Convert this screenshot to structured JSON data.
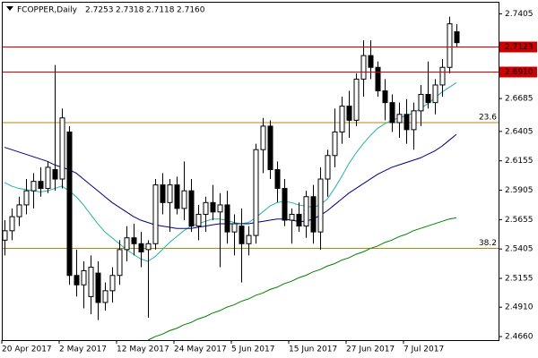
{
  "chart_data": {
    "type": "candlestick",
    "title": "FCOPPER,Daily",
    "ohlc_labels": [
      "2.7253",
      "2.7318",
      "2.7118",
      "2.7160"
    ],
    "categories": [
      "20 Apr 2017",
      null,
      null,
      null,
      null,
      null,
      null,
      null,
      "2 May 2017",
      null,
      null,
      null,
      null,
      null,
      null,
      null,
      "12 May 2017",
      null,
      null,
      null,
      null,
      null,
      null,
      null,
      "24 May 2017",
      null,
      null,
      null,
      null,
      null,
      null,
      null,
      "5 Jun 2017",
      null,
      null,
      null,
      null,
      null,
      null,
      null,
      "15 Jun 2017",
      null,
      null,
      null,
      null,
      null,
      null,
      null,
      "27 Jun 2017",
      null,
      null,
      null,
      null,
      null,
      null,
      null,
      "7 Jul 2017",
      null,
      null,
      null,
      null,
      null,
      null,
      null
    ],
    "open": [
      2.548,
      2.556,
      2.568,
      2.578,
      2.59,
      2.598,
      2.592,
      2.608,
      2.6,
      2.64,
      2.518,
      2.51,
      2.5,
      2.52,
      2.495,
      2.505,
      2.518,
      2.54,
      2.55,
      2.545,
      2.54,
      2.545,
      2.595,
      2.58,
      2.595,
      2.575,
      2.59,
      2.56,
      2.57,
      2.58,
      2.572,
      2.578,
      2.555,
      2.56,
      2.545,
      2.552,
      2.625,
      2.645,
      2.608,
      2.592,
      2.565,
      2.57,
      2.56,
      2.585,
      2.555,
      2.6,
      2.62,
      2.64,
      2.662,
      2.65,
      2.685,
      2.705,
      2.695,
      2.675,
      2.665,
      2.648,
      2.655,
      2.642,
      2.658,
      2.672,
      2.665,
      2.68,
      2.695,
      2.7253
    ],
    "high": [
      2.565,
      2.575,
      2.585,
      2.6,
      2.605,
      2.61,
      2.615,
      2.697,
      2.66,
      2.645,
      2.54,
      2.53,
      2.535,
      2.53,
      2.512,
      2.525,
      2.548,
      2.56,
      2.562,
      2.555,
      2.548,
      2.6,
      2.605,
      2.6,
      2.602,
      2.615,
      2.6,
      2.578,
      2.585,
      2.595,
      2.588,
      2.59,
      2.57,
      2.575,
      2.56,
      2.63,
      2.652,
      2.65,
      2.615,
      2.6,
      2.575,
      2.58,
      2.59,
      2.595,
      2.61,
      2.625,
      2.66,
      2.67,
      2.675,
      2.69,
      2.718,
      2.718,
      2.7,
      2.685,
      2.672,
      2.665,
      2.668,
      2.665,
      2.68,
      2.7,
      2.685,
      2.702,
      2.738,
      2.7318
    ],
    "low": [
      2.535,
      2.548,
      2.56,
      2.57,
      2.575,
      2.585,
      2.588,
      2.59,
      2.592,
      2.51,
      2.5,
      2.49,
      2.485,
      2.48,
      2.488,
      2.495,
      2.51,
      2.53,
      2.535,
      2.525,
      2.482,
      2.54,
      2.57,
      2.555,
      2.57,
      2.565,
      2.555,
      2.548,
      2.555,
      2.565,
      2.525,
      2.545,
      2.535,
      2.512,
      2.535,
      2.545,
      2.605,
      2.6,
      2.58,
      2.56,
      2.545,
      2.555,
      2.55,
      2.545,
      2.54,
      2.585,
      2.61,
      2.63,
      2.635,
      2.645,
      2.67,
      2.685,
      2.67,
      2.65,
      2.64,
      2.635,
      2.63,
      2.625,
      2.645,
      2.66,
      2.655,
      2.67,
      2.69,
      2.7118
    ],
    "close": [
      2.556,
      2.568,
      2.578,
      2.59,
      2.598,
      2.592,
      2.61,
      2.6,
      2.652,
      2.518,
      2.51,
      2.522,
      2.525,
      2.495,
      2.505,
      2.518,
      2.54,
      2.55,
      2.545,
      2.538,
      2.545,
      2.595,
      2.58,
      2.595,
      2.575,
      2.59,
      2.56,
      2.57,
      2.58,
      2.572,
      2.578,
      2.555,
      2.562,
      2.545,
      2.552,
      2.625,
      2.645,
      2.608,
      2.592,
      2.565,
      2.57,
      2.56,
      2.585,
      2.555,
      2.6,
      2.62,
      2.64,
      2.662,
      2.65,
      2.685,
      2.705,
      2.695,
      2.675,
      2.665,
      2.648,
      2.655,
      2.642,
      2.658,
      2.672,
      2.665,
      2.68,
      2.695,
      2.732,
      2.716
    ],
    "indicators": [
      {
        "color": "#20b2aa",
        "values": [
          2.597,
          2.594,
          2.592,
          2.591,
          2.59,
          2.589,
          2.59,
          2.592,
          2.594,
          2.59,
          2.585,
          2.578,
          2.57,
          2.562,
          2.555,
          2.55,
          2.545,
          2.54,
          2.536,
          2.532,
          2.53,
          2.534,
          2.54,
          2.546,
          2.551,
          2.556,
          2.56,
          2.562,
          2.564,
          2.566,
          2.566,
          2.565,
          2.563,
          2.562,
          2.563,
          2.567,
          2.572,
          2.577,
          2.58,
          2.581,
          2.58,
          2.578,
          2.577,
          2.576,
          2.578,
          2.583,
          2.592,
          2.602,
          2.613,
          2.622,
          2.63,
          2.637,
          2.643,
          2.647,
          2.65,
          2.652,
          2.654,
          2.656,
          2.66,
          2.664,
          2.669,
          2.674,
          2.678,
          2.682
        ]
      },
      {
        "color": "#000080",
        "values": [
          2.627,
          2.625,
          2.623,
          2.621,
          2.619,
          2.617,
          2.615,
          2.612,
          2.61,
          2.608,
          2.605,
          2.6,
          2.595,
          2.59,
          2.585,
          2.58,
          2.576,
          2.572,
          2.568,
          2.565,
          2.563,
          2.561,
          2.56,
          2.559,
          2.558,
          2.558,
          2.558,
          2.559,
          2.56,
          2.561,
          2.562,
          2.562,
          2.562,
          2.562,
          2.562,
          2.563,
          2.564,
          2.565,
          2.566,
          2.566,
          2.565,
          2.564,
          2.564,
          2.566,
          2.569,
          2.573,
          2.578,
          2.583,
          2.588,
          2.592,
          2.596,
          2.6,
          2.604,
          2.607,
          2.61,
          2.612,
          2.614,
          2.616,
          2.618,
          2.621,
          2.624,
          2.628,
          2.633,
          2.638
        ]
      },
      {
        "color": "#008000",
        "values": [
          null,
          null,
          null,
          null,
          null,
          null,
          null,
          null,
          null,
          null,
          null,
          null,
          null,
          null,
          null,
          null,
          null,
          null,
          null,
          null,
          2.463,
          2.466,
          2.468,
          2.471,
          2.473,
          2.476,
          2.478,
          2.481,
          2.483,
          2.486,
          2.488,
          2.491,
          2.493,
          2.496,
          2.498,
          2.501,
          2.503,
          2.506,
          2.508,
          2.511,
          2.513,
          2.516,
          2.518,
          2.521,
          2.523,
          2.526,
          2.528,
          2.531,
          2.533,
          2.536,
          2.538,
          2.541,
          2.543,
          2.546,
          2.548,
          2.551,
          2.553,
          2.556,
          2.558,
          2.56,
          2.562,
          2.564,
          2.566,
          2.567
        ]
      }
    ],
    "price_lines": [
      {
        "value": 2.7123,
        "label": "2.7123",
        "color": "#cc0000"
      },
      {
        "value": 2.691,
        "label": "2.6910",
        "color": "#cc0000"
      }
    ],
    "fib_levels": [
      {
        "value": 2.648,
        "label": "23.6",
        "color": "#b8860b"
      },
      {
        "value": 2.541,
        "label": "38.2",
        "color": "#b8860b"
      }
    ],
    "ylim": [
      2.463,
      2.75
    ],
    "yticks": [
      {
        "value": 2.466,
        "label": "2.4660"
      },
      {
        "value": 2.491,
        "label": "2.4910"
      },
      2.5155,
      2.5405,
      2.5655,
      2.5905,
      2.6155,
      2.6405,
      2.6685,
      2.7405
    ],
    "grid": false,
    "bull_color": "#ffffff",
    "bear_color": "#000000"
  }
}
